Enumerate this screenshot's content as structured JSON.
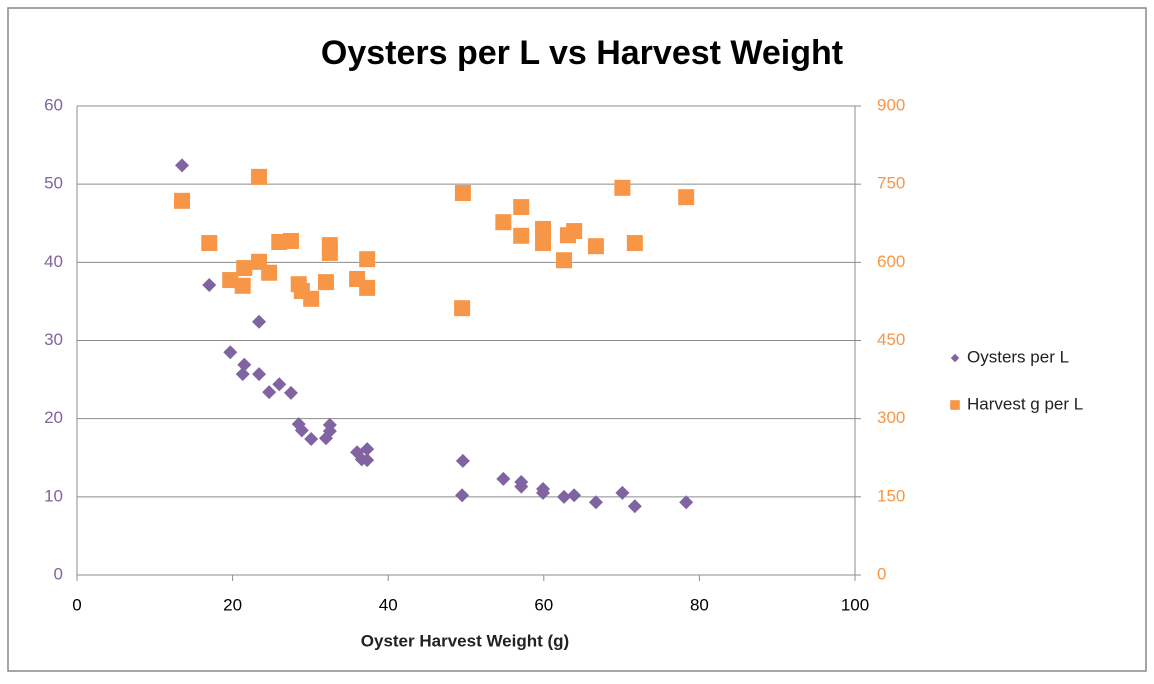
{
  "chart_data": {
    "type": "scatter",
    "title": "Oysters per L vs Harvest Weight",
    "xlabel": "Oyster Harvest Weight (g)",
    "xlim": [
      0,
      100
    ],
    "xticks": [
      0,
      20,
      40,
      60,
      80,
      100
    ],
    "ylim": [
      0,
      60
    ],
    "yticks": [
      0,
      10,
      20,
      30,
      40,
      50,
      60
    ],
    "y2lim": [
      0,
      900
    ],
    "y2ticks": [
      0,
      150,
      300,
      450,
      600,
      750,
      900
    ],
    "grid": true,
    "legend": "right",
    "series": [
      {
        "name": "Oysters per L",
        "color": "#8064a2",
        "marker": "diamond",
        "x": [
          13.5,
          17.0,
          19.7,
          21.5,
          21.3,
          23.4,
          23.4,
          24.7,
          26.0,
          27.5,
          28.5,
          28.9,
          30.1,
          32.0,
          32.5,
          32.5,
          36.0,
          36.6,
          37.3,
          37.3,
          49.6,
          49.5,
          54.8,
          57.1,
          57.1,
          59.9,
          59.9,
          62.6,
          63.9,
          66.7,
          70.1,
          71.7,
          78.3
        ],
        "values": [
          52.4,
          37.1,
          28.5,
          26.9,
          25.7,
          25.7,
          32.4,
          23.4,
          24.4,
          23.3,
          19.3,
          18.5,
          17.4,
          17.5,
          19.2,
          18.4,
          15.7,
          14.8,
          16.1,
          14.7,
          14.6,
          10.2,
          12.3,
          11.9,
          11.3,
          11.0,
          10.5,
          10.0,
          10.2,
          9.3,
          10.5,
          8.8,
          9.3
        ]
      },
      {
        "name": "Harvest g per L",
        "color": "#f79646",
        "marker": "square",
        "axis": "y2",
        "x": [
          13.5,
          17.0,
          19.7,
          21.5,
          21.3,
          23.4,
          23.4,
          24.7,
          26.0,
          27.5,
          28.5,
          28.9,
          30.1,
          32.0,
          32.5,
          32.5,
          36.0,
          37.3,
          37.3,
          49.6,
          49.5,
          54.8,
          57.1,
          57.1,
          59.9,
          59.9,
          62.6,
          63.1,
          63.9,
          66.7,
          70.1,
          71.7,
          78.3
        ],
        "values": [
          718,
          637,
          566,
          589,
          555,
          764,
          601,
          580,
          639,
          641,
          558,
          545,
          530,
          562,
          633,
          618,
          568,
          551,
          606,
          733,
          512,
          677,
          706,
          651,
          664,
          637,
          604,
          652,
          660,
          631,
          743,
          637,
          725
        ]
      }
    ]
  }
}
